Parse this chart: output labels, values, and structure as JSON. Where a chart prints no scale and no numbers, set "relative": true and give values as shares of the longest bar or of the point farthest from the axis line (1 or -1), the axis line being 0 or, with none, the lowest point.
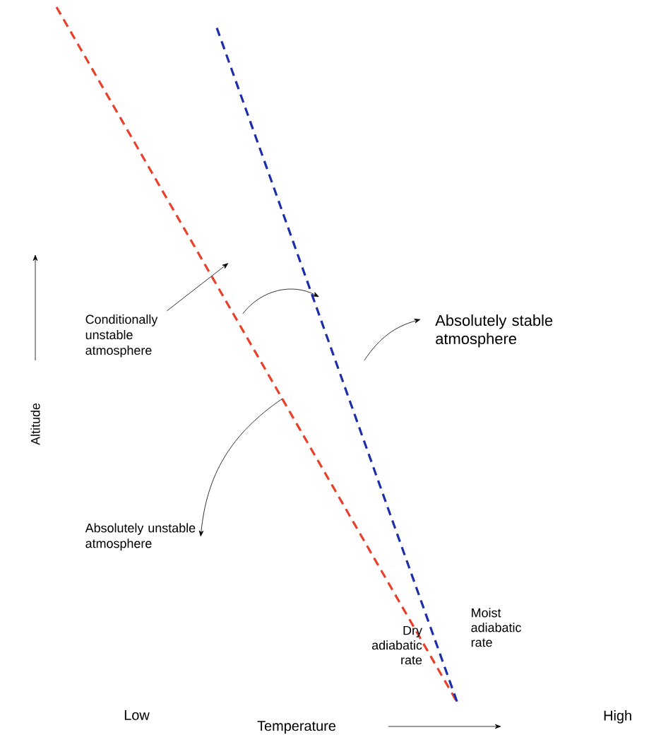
{
  "chart_data": {
    "type": "line",
    "relative": true,
    "xlabel": "Temperature",
    "ylabel": "Altitude",
    "categories": [
      null,
      "Low",
      null,
      null,
      null,
      null,
      null,
      "High"
    ],
    "tick_labels": "x",
    "grid": false,
    "marker": "none",
    "line_style": "dashed",
    "series": [
      {
        "name": "Dry adiabatic rate",
        "color": "#e8402a",
        "values": [
          1,
          0.8,
          0.6,
          0.4,
          0.2,
          0,
          null,
          null
        ]
      },
      {
        "name": "Moist adiabatic rate",
        "color": "#1c2fa8",
        "values": [
          null,
          null,
          0.97,
          0.647,
          0.323,
          0,
          null,
          null
        ]
      }
    ],
    "annotations": [
      "Conditionally unstable atmosphere",
      "Absolutely stable atmosphere",
      "Absolutely unstable atmosphere"
    ]
  }
}
